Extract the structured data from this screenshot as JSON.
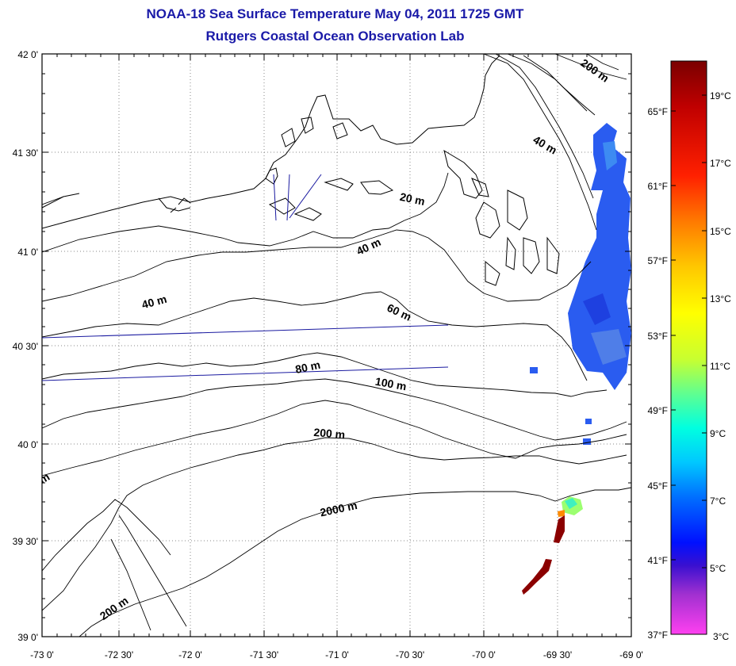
{
  "title": {
    "line1": "NOAA-18 Sea Surface Temperature May 04, 2011 1725 GMT",
    "line2": "Rutgers Coastal Ocean Observation Lab"
  },
  "axes": {
    "lat_labels": [
      "42 0'",
      "41 30'",
      "41 0'",
      "40 30'",
      "40 0'",
      "39 30'",
      "39 0'"
    ],
    "lon_labels": [
      "-73 0'",
      "-72 30'",
      "-72 0'",
      "-71 30'",
      "-71 0'",
      "-70 30'",
      "-70 0'",
      "-69 30'",
      "-69 0'"
    ]
  },
  "contour_labels": [
    "200 m",
    "40 m",
    "20 m",
    "40 m",
    "40 m",
    "60 m",
    "80 m",
    "100 m",
    "200 m",
    "2000 m",
    "200 m",
    "m"
  ],
  "colorbar": {
    "celsius": [
      "19°C",
      "17°C",
      "15°C",
      "13°C",
      "11°C",
      "9°C",
      "7°C",
      "5°C",
      "3°C"
    ],
    "fahrenheit": [
      "65°F",
      "61°F",
      "57°F",
      "53°F",
      "49°F",
      "45°F",
      "41°F",
      "37°F"
    ],
    "colors": [
      "#8b0000",
      "#d40000",
      "#ff6a00",
      "#ffd000",
      "#ffff00",
      "#8cff5a",
      "#00ffd8",
      "#00a0ff",
      "#0030ff",
      "#0000e0",
      "#7a30d0",
      "#d040d0",
      "#ff40ff"
    ]
  }
}
